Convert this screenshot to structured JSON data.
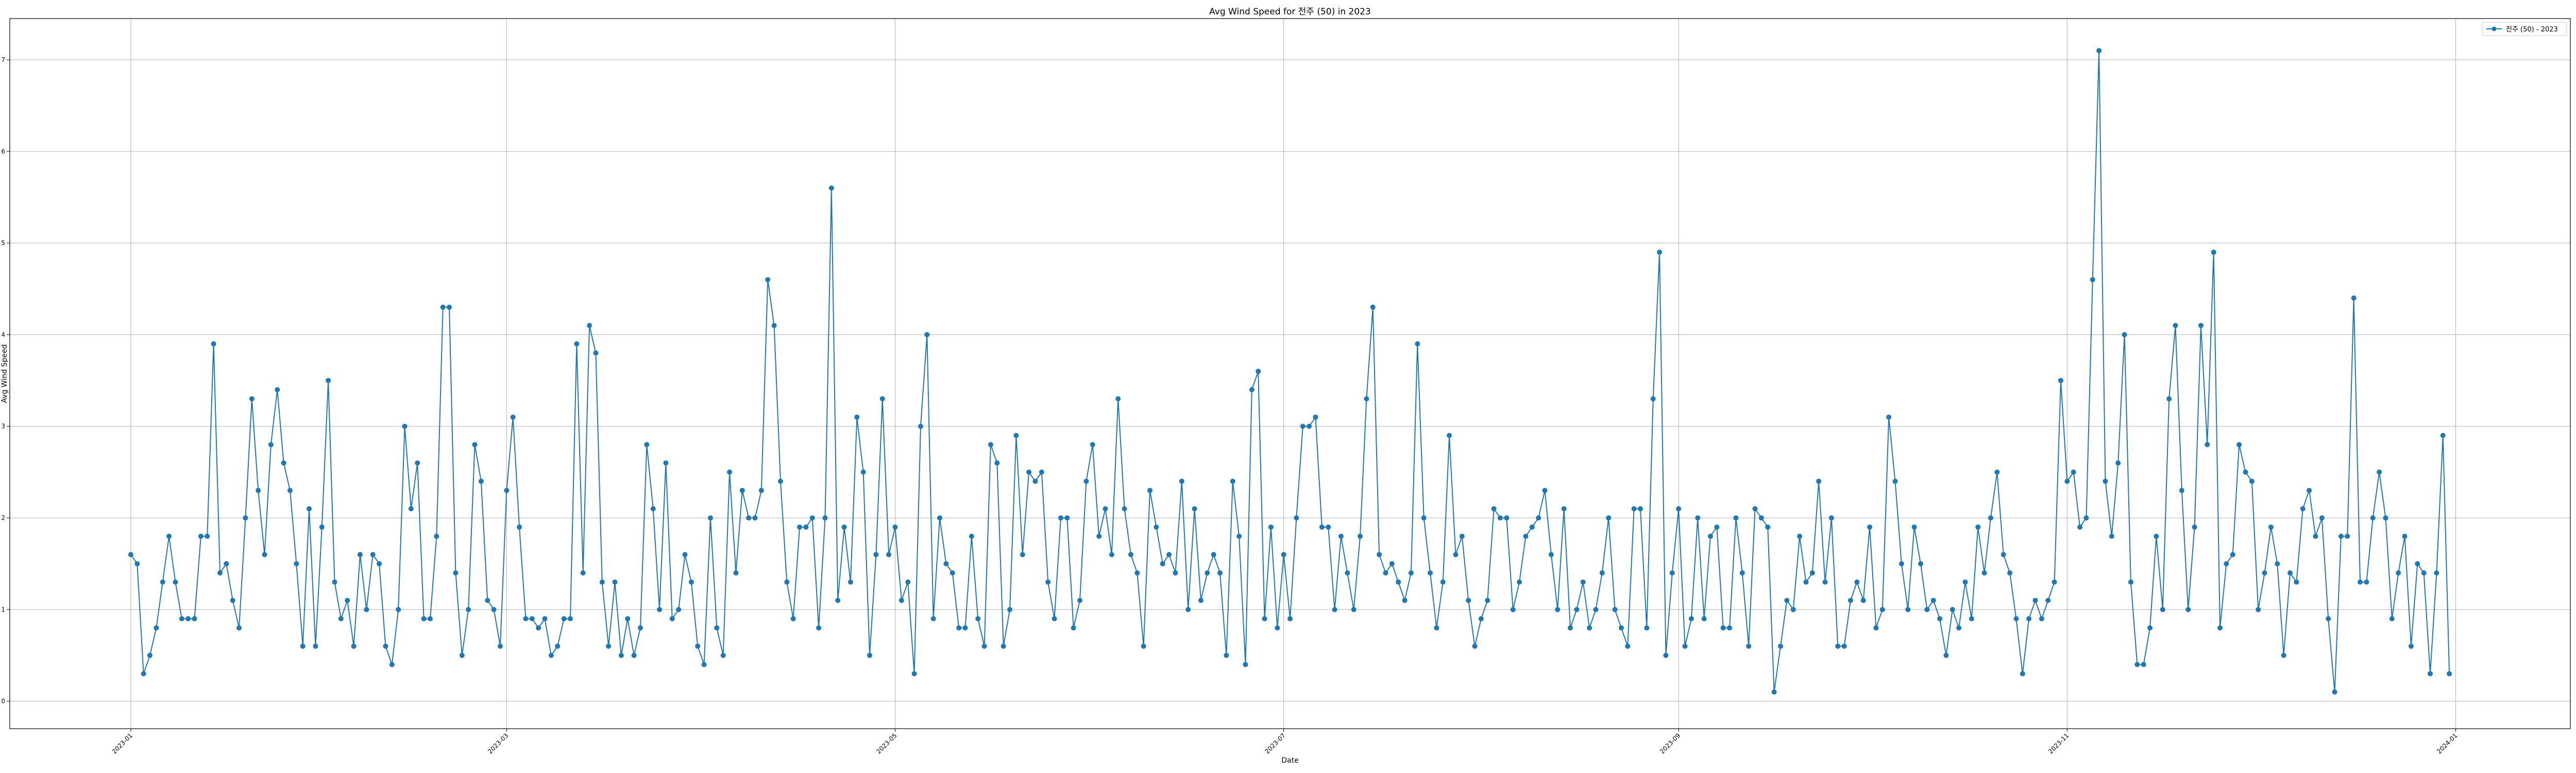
{
  "chart_data": {
    "type": "line",
    "title": "Avg Wind Speed for 전주 (50) in 2023",
    "xlabel": "Date",
    "ylabel": "Avg Wind Speed",
    "x_start": "2023-01-01",
    "x_range": [
      "2022-12-13",
      "2024-01-19"
    ],
    "ylim": [
      -0.3,
      7.45
    ],
    "grid": true,
    "legend": "top-right",
    "x_ticks": [
      "2023-01",
      "2023-03",
      "2023-05",
      "2023-07",
      "2023-09",
      "2023-11",
      "2024-01"
    ],
    "y_ticks": [
      "0",
      "1",
      "2",
      "3",
      "4",
      "5",
      "6",
      "7"
    ],
    "series": [
      {
        "name": "전주 (50) - 2023",
        "color": "#1f77b4",
        "marker": "circle",
        "values": [
          1.6,
          1.5,
          0.3,
          0.5,
          0.8,
          1.3,
          1.8,
          1.3,
          0.9,
          0.9,
          0.9,
          1.8,
          1.8,
          3.9,
          1.4,
          1.5,
          1.1,
          0.8,
          2.0,
          3.3,
          2.3,
          1.6,
          2.8,
          3.4,
          2.6,
          2.3,
          1.5,
          0.6,
          2.1,
          0.6,
          1.9,
          3.5,
          1.3,
          0.9,
          1.1,
          0.6,
          1.6,
          1.0,
          1.6,
          1.5,
          0.6,
          0.4,
          1.0,
          3.0,
          2.1,
          2.6,
          0.9,
          0.9,
          1.8,
          4.3,
          4.3,
          1.4,
          0.5,
          1.0,
          2.8,
          2.4,
          1.1,
          1.0,
          0.6,
          2.3,
          3.1,
          1.9,
          0.9,
          0.9,
          0.8,
          0.9,
          0.5,
          0.6,
          0.9,
          0.9,
          3.9,
          1.4,
          4.1,
          3.8,
          1.3,
          0.6,
          1.3,
          0.5,
          0.9,
          0.5,
          0.8,
          2.8,
          2.1,
          1.0,
          2.6,
          0.9,
          1.0,
          1.6,
          1.3,
          0.6,
          0.4,
          2.0,
          0.8,
          0.5,
          2.5,
          1.4,
          2.3,
          2.0,
          2.0,
          2.3,
          4.6,
          4.1,
          2.4,
          1.3,
          0.9,
          1.9,
          1.9,
          2.0,
          0.8,
          2.0,
          5.6,
          1.1,
          1.9,
          1.3,
          3.1,
          2.5,
          0.5,
          1.6,
          3.3,
          1.6,
          1.9,
          1.1,
          1.3,
          0.3,
          3.0,
          4.0,
          0.9,
          2.0,
          1.5,
          1.4,
          0.8,
          0.8,
          1.8,
          0.9,
          0.6,
          2.8,
          2.6,
          0.6,
          1.0,
          2.9,
          1.6,
          2.5,
          2.4,
          2.5,
          1.3,
          0.9,
          2.0,
          2.0,
          0.8,
          1.1,
          2.4,
          2.8,
          1.8,
          2.1,
          1.6,
          3.3,
          2.1,
          1.6,
          1.4,
          0.6,
          2.3,
          1.9,
          1.5,
          1.6,
          1.4,
          2.4,
          1.0,
          2.1,
          1.1,
          1.4,
          1.6,
          1.4,
          0.5,
          2.4,
          1.8,
          0.4,
          3.4,
          3.6,
          0.9,
          1.9,
          0.8,
          1.6,
          0.9,
          2.0,
          3.0,
          3.0,
          3.1,
          1.9,
          1.9,
          1.0,
          1.8,
          1.4,
          1.0,
          1.8,
          3.3,
          4.3,
          1.6,
          1.4,
          1.5,
          1.3,
          1.1,
          1.4,
          3.9,
          2.0,
          1.4,
          0.8,
          1.3,
          2.9,
          1.6,
          1.8,
          1.1,
          0.6,
          0.9,
          1.1,
          2.1,
          2.0,
          2.0,
          1.0,
          1.3,
          1.8,
          1.9,
          2.0,
          2.3,
          1.6,
          1.0,
          2.1,
          0.8,
          1.0,
          1.3,
          0.8,
          1.0,
          1.4,
          2.0,
          1.0,
          0.8,
          0.6,
          2.1,
          2.1,
          0.8,
          3.3,
          4.9,
          0.5,
          1.4,
          2.1,
          0.6,
          0.9,
          2.0,
          0.9,
          1.8,
          1.9,
          0.8,
          0.8,
          2.0,
          1.4,
          0.6,
          2.1,
          2.0,
          1.9,
          0.1,
          0.6,
          1.1,
          1.0,
          1.8,
          1.3,
          1.4,
          2.4,
          1.3,
          2.0,
          0.6,
          0.6,
          1.1,
          1.3,
          1.1,
          1.9,
          0.8,
          1.0,
          3.1,
          2.4,
          1.5,
          1.0,
          1.9,
          1.5,
          1.0,
          1.1,
          0.9,
          0.5,
          1.0,
          0.8,
          1.3,
          0.9,
          1.9,
          1.4,
          2.0,
          2.5,
          1.6,
          1.4,
          0.9,
          0.3,
          0.9,
          1.1,
          0.9,
          1.1,
          1.3,
          3.5,
          2.4,
          2.5,
          1.9,
          2.0,
          4.6,
          7.1,
          2.4,
          1.8,
          2.6,
          4.0,
          1.3,
          0.4,
          0.4,
          0.8,
          1.8,
          1.0,
          3.3,
          4.1,
          2.3,
          1.0,
          1.9,
          4.1,
          2.8,
          4.9,
          0.8,
          1.5,
          1.6,
          2.8,
          2.5,
          2.4,
          1.0,
          1.4,
          1.9,
          1.5,
          0.5,
          1.4,
          1.3,
          2.1,
          2.3,
          1.8,
          2.0,
          0.9,
          0.1,
          1.8,
          1.8,
          4.4,
          1.3,
          1.3,
          2.0,
          2.5,
          2.0,
          0.9,
          1.4,
          1.8,
          0.6,
          1.5,
          1.4,
          0.3,
          1.4,
          2.9,
          0.3
        ]
      }
    ]
  }
}
